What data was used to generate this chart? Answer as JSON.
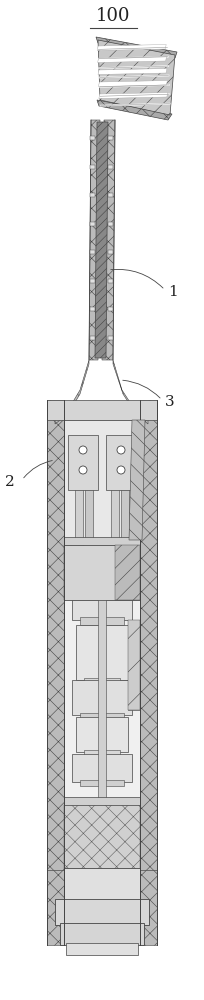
{
  "title": "100",
  "label_1": "1",
  "label_2": "2",
  "label_3": "3",
  "bg_color": "#ffffff",
  "line_color": "#444444",
  "dark_color": "#222222",
  "figsize": [
    2.05,
    10.0
  ],
  "dpi": 100
}
